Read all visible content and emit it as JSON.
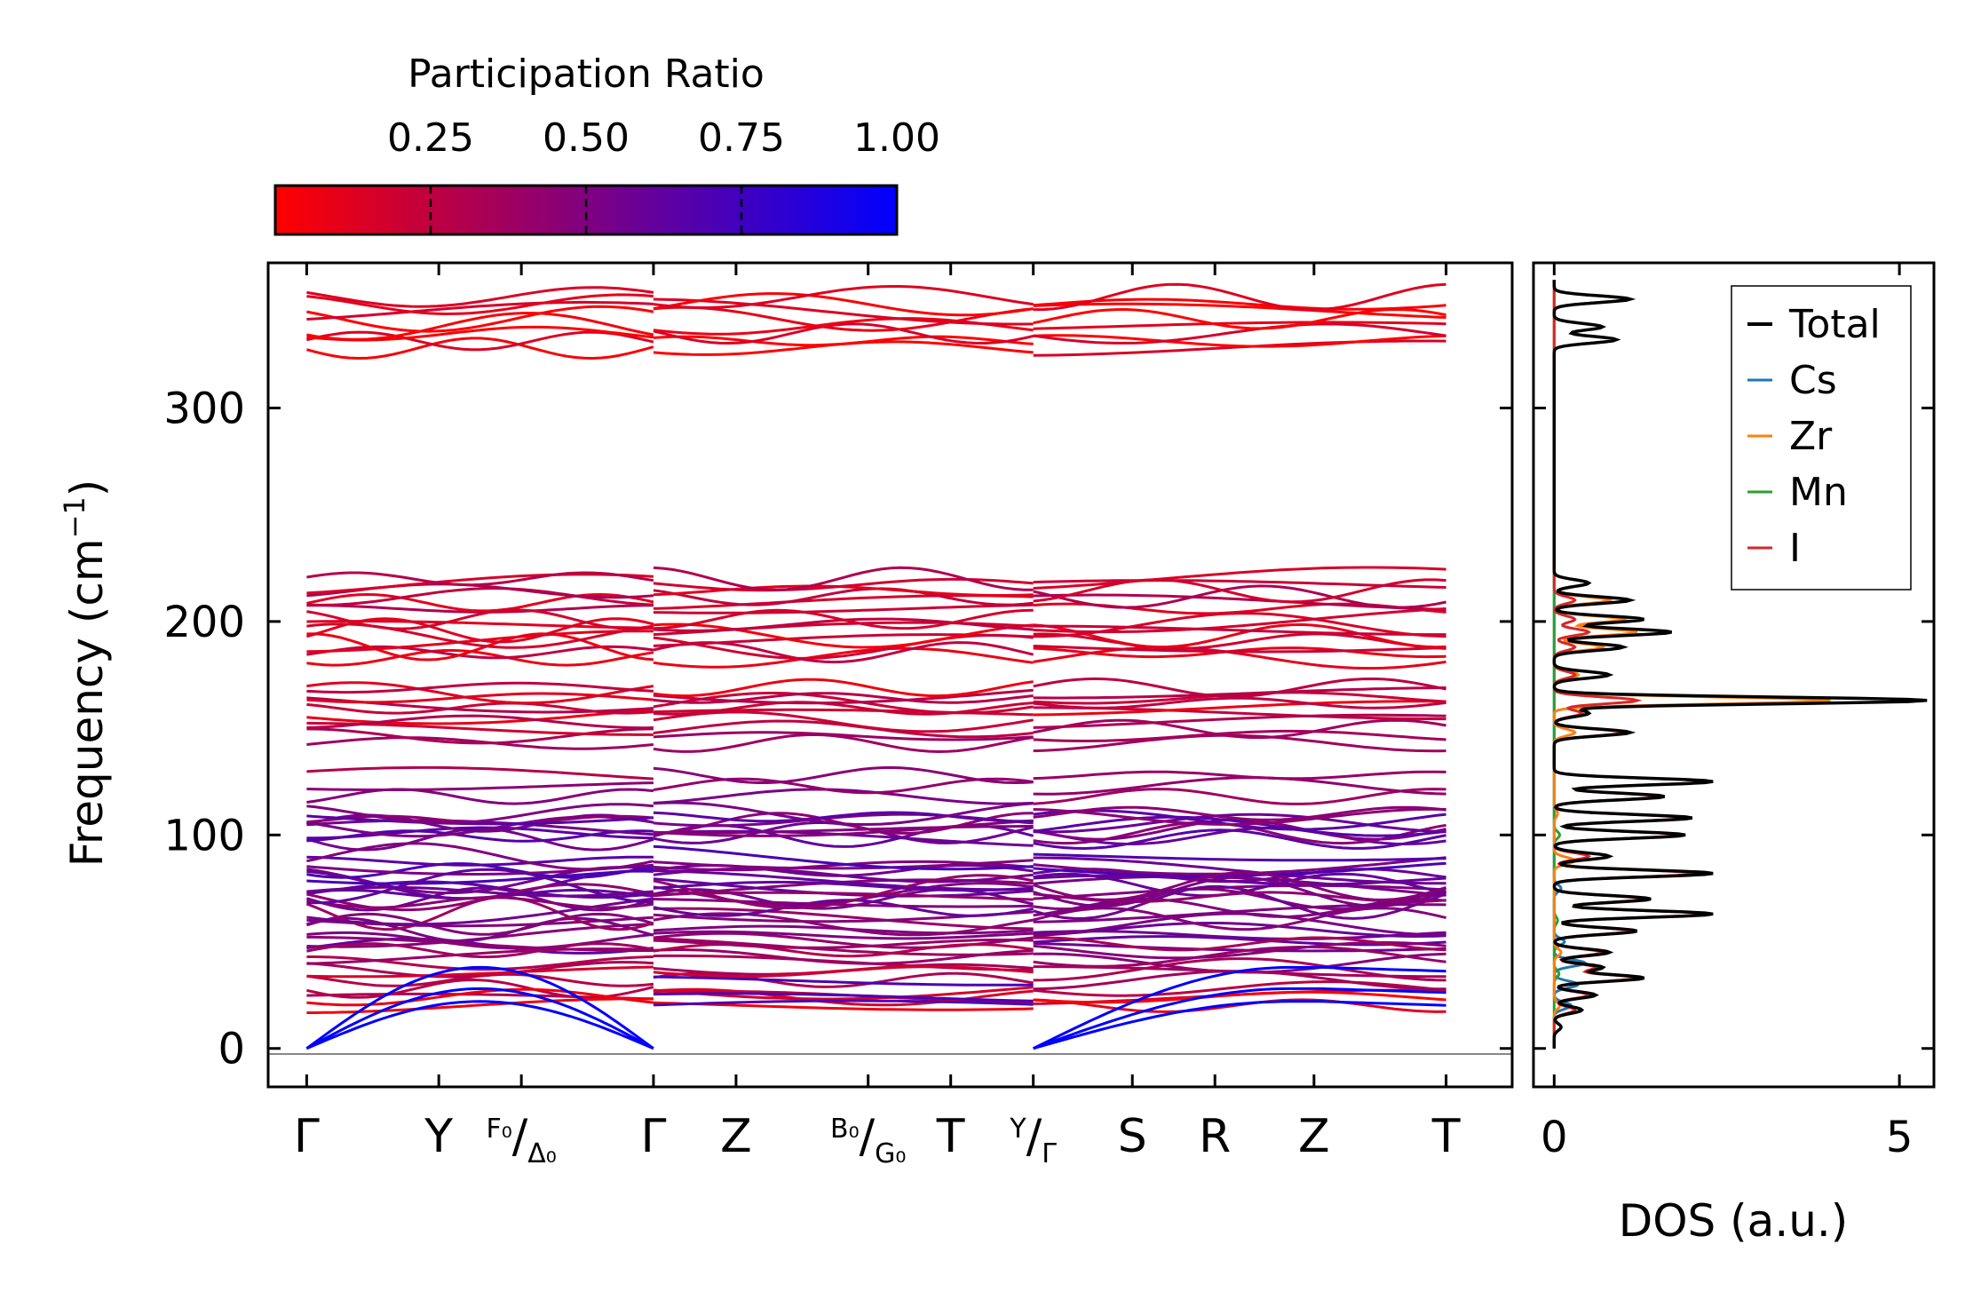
{
  "chart_data": [
    {
      "type": "line",
      "subtype": "phonon-band-structure",
      "colorbar": {
        "title": "Participation Ratio",
        "tick_labels": [
          "0.25",
          "0.50",
          "0.75",
          "1.00"
        ],
        "tick_values": [
          0.25,
          0.5,
          0.75,
          1.0
        ],
        "range": [
          0.0,
          1.0
        ],
        "colors": {
          "low": "#ff0000",
          "high": "#0000ff"
        }
      },
      "ylabel": "Frequency (cm",
      "ylabel_sup": "−1",
      "ylabel_end": ")",
      "ylim": [
        -18,
        368
      ],
      "yticks": [
        0,
        100,
        200,
        300
      ],
      "ytick_labels": [
        "0",
        "100",
        "200",
        "300"
      ],
      "xlim": [
        -0.35,
        10.95
      ],
      "kpoints": [
        {
          "pos": 0.0,
          "label": "Γ"
        },
        {
          "pos": 1.2,
          "label": "Y"
        },
        {
          "pos": 1.95,
          "pre": "F₀",
          "slash": "/",
          "sub": "Δ₀"
        },
        {
          "pos": 3.15,
          "label": "Γ"
        },
        {
          "pos": 3.9,
          "label": "Z"
        },
        {
          "pos": 5.1,
          "pre": "B₀",
          "slash": "/",
          "sub": "G₀"
        },
        {
          "pos": 5.85,
          "label": "T"
        },
        {
          "pos": 6.6,
          "pre": "Y",
          "slash": "/",
          "sub": "Γ"
        },
        {
          "pos": 7.5,
          "label": "S"
        },
        {
          "pos": 8.25,
          "label": "R"
        },
        {
          "pos": 9.15,
          "label": "Z"
        },
        {
          "pos": 10.35,
          "label": "T"
        }
      ],
      "segments": [
        [
          0.0,
          3.15
        ],
        [
          3.15,
          6.6
        ],
        [
          6.6,
          10.35
        ]
      ],
      "band_bundles": [
        {
          "center": 340,
          "spread": 12,
          "count": 8,
          "pr": 0.05
        },
        {
          "center": 213,
          "spread": 7,
          "count": 6,
          "pr": 0.22
        },
        {
          "center": 192,
          "spread": 9,
          "count": 8,
          "pr": 0.15
        },
        {
          "center": 163,
          "spread": 6,
          "count": 6,
          "pr": 0.18
        },
        {
          "center": 148,
          "spread": 5,
          "count": 4,
          "pr": 0.3
        },
        {
          "center": 123,
          "spread": 5,
          "count": 3,
          "pr": 0.4
        },
        {
          "center": 104,
          "spread": 6,
          "count": 9,
          "pr": 0.55
        },
        {
          "center": 80,
          "spread": 10,
          "count": 10,
          "pr": 0.6
        },
        {
          "center": 62,
          "spread": 14,
          "count": 12,
          "pr": 0.5
        },
        {
          "center": 43,
          "spread": 6,
          "count": 5,
          "pr": 0.4
        },
        {
          "center": 30,
          "spread": 6,
          "count": 4,
          "pr": 0.25
        },
        {
          "center": 22,
          "spread": 2,
          "count": 2,
          "pr": 0.05
        }
      ],
      "acoustic": {
        "pr": 1.0,
        "color": "#0000ff",
        "branch_maxima": [
          22,
          28,
          38
        ]
      }
    },
    {
      "type": "line",
      "subtype": "density-of-states",
      "xlabel": "DOS (a.u.)",
      "xlim": [
        -0.3,
        5.5
      ],
      "xticks": [
        0,
        5
      ],
      "xtick_labels": [
        "0",
        "5"
      ],
      "ylim": [
        -18,
        368
      ],
      "legend": {
        "placement": "top-right"
      },
      "series": [
        {
          "name": "Total",
          "color": "#000000",
          "peaks": [
            [
              10,
              0.1
            ],
            [
              18,
              0.4
            ],
            [
              25,
              0.6
            ],
            [
              33,
              1.3
            ],
            [
              38,
              0.7
            ],
            [
              45,
              0.8
            ],
            [
              55,
              1.2
            ],
            [
              63,
              2.3
            ],
            [
              70,
              1.4
            ],
            [
              82,
              2.3
            ],
            [
              90,
              0.8
            ],
            [
              100,
              1.9
            ],
            [
              108,
              2.0
            ],
            [
              118,
              1.6
            ],
            [
              125,
              2.3
            ],
            [
              148,
              1.1
            ],
            [
              157,
              0.5
            ],
            [
              163,
              5.4
            ],
            [
              175,
              0.8
            ],
            [
              188,
              1.0
            ],
            [
              195,
              1.7
            ],
            [
              201,
              1.3
            ],
            [
              210,
              1.1
            ],
            [
              218,
              0.5
            ],
            [
              332,
              0.9
            ],
            [
              338,
              0.7
            ],
            [
              351,
              1.1
            ]
          ]
        },
        {
          "name": "Cs",
          "color": "#1f77b4",
          "peaks": [
            [
              20,
              0.25
            ],
            [
              30,
              0.35
            ],
            [
              40,
              0.45
            ],
            [
              50,
              0.15
            ],
            [
              75,
              0.1
            ]
          ]
        },
        {
          "name": "Zr",
          "color": "#ff7f0e",
          "peaks": [
            [
              20,
              0.08
            ],
            [
              45,
              0.1
            ],
            [
              88,
              0.3
            ],
            [
              110,
              0.05
            ],
            [
              148,
              0.3
            ],
            [
              163,
              4.0
            ],
            [
              175,
              0.35
            ],
            [
              188,
              0.7
            ],
            [
              195,
              1.2
            ],
            [
              201,
              1.0
            ],
            [
              210,
              0.8
            ],
            [
              218,
              0.5
            ]
          ]
        },
        {
          "name": "Mn",
          "color": "#2ca02c",
          "peaks": [
            [
              35,
              0.07
            ],
            [
              60,
              0.05
            ],
            [
              100,
              0.08
            ],
            [
              332,
              0.9
            ],
            [
              338,
              0.7
            ],
            [
              351,
              1.05
            ]
          ]
        },
        {
          "name": "I",
          "color": "#d62728",
          "peaks": [
            [
              18,
              0.3
            ],
            [
              25,
              0.5
            ],
            [
              33,
              1.2
            ],
            [
              38,
              0.6
            ],
            [
              45,
              0.7
            ],
            [
              55,
              1.1
            ],
            [
              63,
              2.2
            ],
            [
              70,
              1.3
            ],
            [
              82,
              2.1
            ],
            [
              90,
              0.5
            ],
            [
              100,
              1.8
            ],
            [
              108,
              1.9
            ],
            [
              118,
              1.5
            ],
            [
              125,
              2.2
            ],
            [
              148,
              1.0
            ],
            [
              157,
              0.4
            ],
            [
              163,
              1.2
            ],
            [
              175,
              0.3
            ],
            [
              188,
              0.3
            ],
            [
              195,
              0.5
            ],
            [
              201,
              0.3
            ],
            [
              210,
              0.3
            ]
          ]
        }
      ]
    }
  ]
}
